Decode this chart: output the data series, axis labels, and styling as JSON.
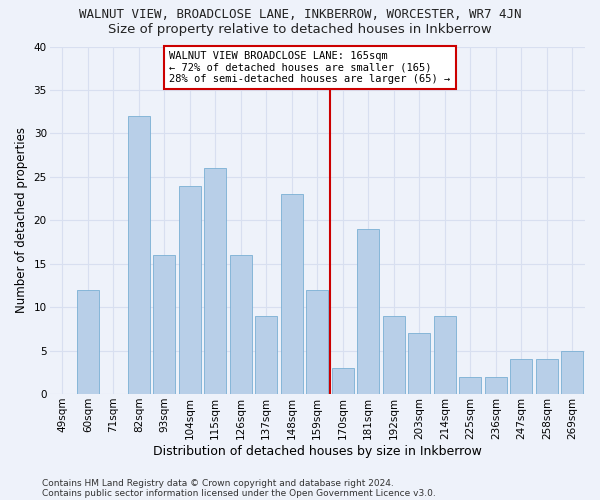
{
  "title": "WALNUT VIEW, BROADCLOSE LANE, INKBERROW, WORCESTER, WR7 4JN",
  "subtitle": "Size of property relative to detached houses in Inkberrow",
  "xlabel": "Distribution of detached houses by size in Inkberrow",
  "ylabel": "Number of detached properties",
  "categories": [
    "49sqm",
    "60sqm",
    "71sqm",
    "82sqm",
    "93sqm",
    "104sqm",
    "115sqm",
    "126sqm",
    "137sqm",
    "148sqm",
    "159sqm",
    "170sqm",
    "181sqm",
    "192sqm",
    "203sqm",
    "214sqm",
    "225sqm",
    "236sqm",
    "247sqm",
    "258sqm",
    "269sqm"
  ],
  "values": [
    0,
    12,
    0,
    32,
    16,
    24,
    26,
    16,
    9,
    23,
    12,
    3,
    19,
    9,
    7,
    9,
    2,
    2,
    4,
    4,
    5
  ],
  "bar_color": "#b8cfe8",
  "bar_edgecolor": "#7aafd4",
  "background_color": "#eef2fa",
  "grid_color": "#d8dff0",
  "vline_color": "#cc0000",
  "annotation_line1": "WALNUT VIEW BROADCLOSE LANE: 165sqm",
  "annotation_line2": "← 72% of detached houses are smaller (165)",
  "annotation_line3": "28% of semi-detached houses are larger (65) →",
  "annotation_box_color": "#ffffff",
  "annotation_box_edgecolor": "#cc0000",
  "ylim": [
    0,
    40
  ],
  "yticks": [
    0,
    5,
    10,
    15,
    20,
    25,
    30,
    35,
    40
  ],
  "footer1": "Contains HM Land Registry data © Crown copyright and database right 2024.",
  "footer2": "Contains public sector information licensed under the Open Government Licence v3.0.",
  "title_fontsize": 9,
  "subtitle_fontsize": 9.5,
  "xlabel_fontsize": 9,
  "ylabel_fontsize": 8.5,
  "tick_fontsize": 7.5,
  "annotation_fontsize": 7.5,
  "footer_fontsize": 6.5
}
